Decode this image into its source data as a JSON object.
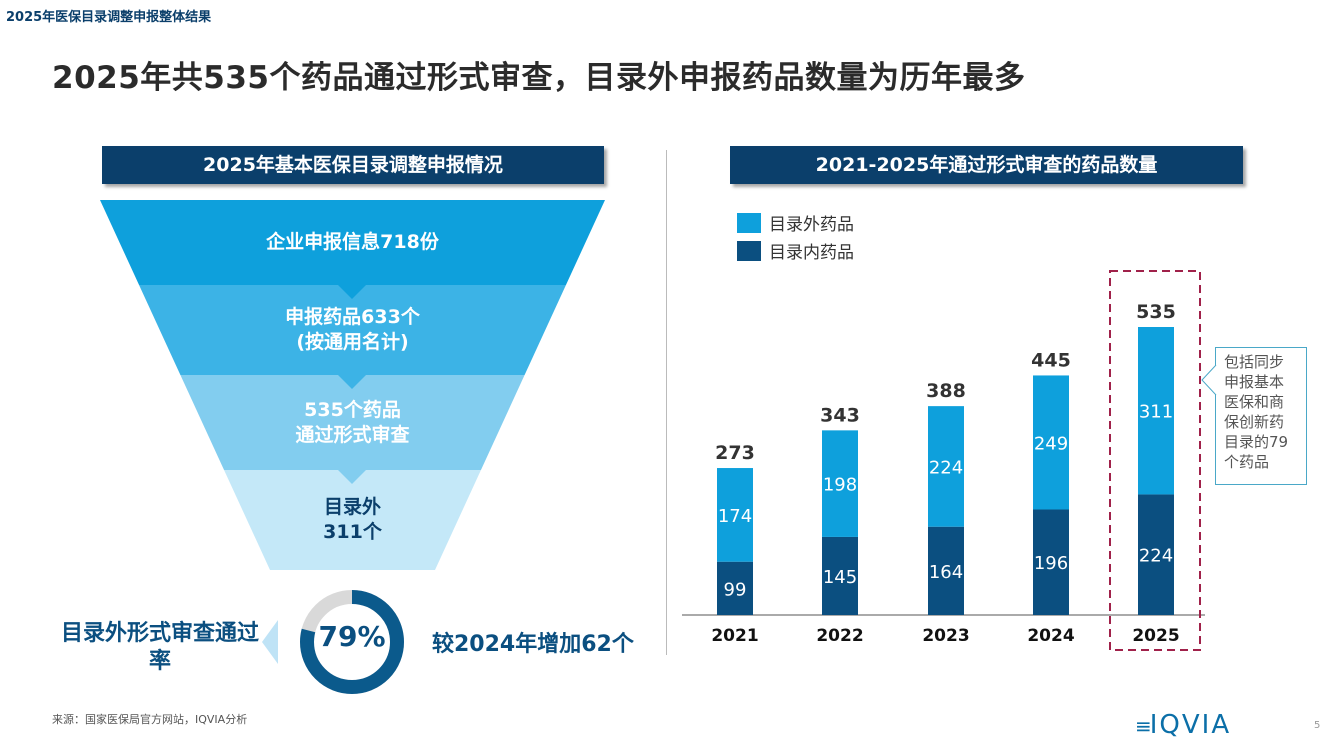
{
  "breadcrumb": "2025年医保目录调整申报整体结果",
  "headline": "2025年共535个药品通过形式审查，目录外申报药品数量为历年最多",
  "left": {
    "section_title": "2025年基本医保目录调整申报情况",
    "funnel": [
      {
        "lines": [
          "企业申报信息718份"
        ],
        "color": "#0ea0dc"
      },
      {
        "lines": [
          "申报药品633个",
          "(按通用名计)"
        ],
        "color": "#3cb3e6"
      },
      {
        "lines": [
          "535个药品",
          "通过形式审查"
        ],
        "color": "#82cdef"
      },
      {
        "lines": [
          "目录外",
          "311个"
        ],
        "color": "#c4e8f8"
      }
    ],
    "rate_label": "目录外形式审查通过率",
    "rate_value": "79%",
    "rate_fraction": 0.79,
    "increase_text": "较2024年增加62个"
  },
  "right": {
    "section_title": "2021-2025年通过形式审查的药品数量"
  },
  "callout": "包括同步申报基本医保和商保创新药目录的79个药品",
  "source": "来源：国家医保局官方网站，IQVIA分析",
  "logo": "IQVIA",
  "page_number": "5",
  "chart_data": {
    "type": "bar",
    "stacked": true,
    "categories": [
      "2021",
      "2022",
      "2023",
      "2024",
      "2025"
    ],
    "series": [
      {
        "name": "目录内药品",
        "values": [
          99,
          145,
          164,
          196,
          224
        ],
        "color": "#0b4f80"
      },
      {
        "name": "目录外药品",
        "values": [
          174,
          198,
          224,
          249,
          311
        ],
        "color": "#0ea0dc"
      }
    ],
    "totals": [
      273,
      343,
      388,
      445,
      535
    ],
    "highlight": "2025",
    "legend": "top-left",
    "grid": false
  }
}
